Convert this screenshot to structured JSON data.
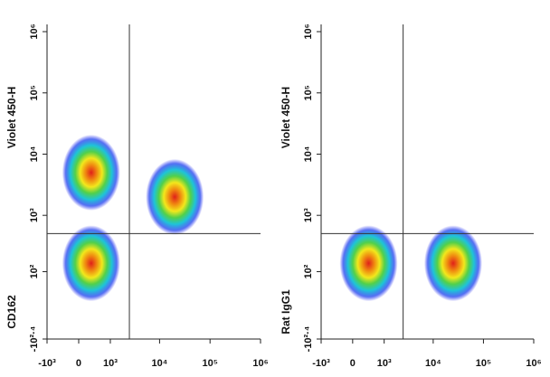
{
  "chart_data": [
    {
      "type": "density",
      "y_label": [
        "CD162",
        "Violet 450-H"
      ],
      "x": [
        300,
        20000,
        300
      ],
      "y": [
        150,
        2000,
        5000
      ],
      "quadrant_gate": {
        "x": 2500,
        "y": 500
      },
      "xlim": [
        -1000,
        1000000
      ],
      "xticks": [
        {
          "value": -1000,
          "label": "-10³"
        },
        0,
        {
          "value": 1000,
          "label": "10³"
        },
        {
          "value": 10000,
          "label": "10⁴"
        },
        {
          "value": 100000,
          "label": "10⁵"
        },
        {
          "value": 1000000,
          "label": "10⁶"
        }
      ],
      "ylim": [
        -251,
        1000000
      ],
      "yticks": [
        {
          "value": -251,
          "label": "-10²·⁴"
        },
        {
          "value": 100,
          "label": "10²"
        },
        {
          "value": 1000,
          "label": "10³"
        },
        {
          "value": 10000,
          "label": "10⁴"
        },
        {
          "value": 100000,
          "label": "10⁵"
        },
        {
          "value": 1000000,
          "label": "10⁶"
        }
      ]
    },
    {
      "type": "density",
      "y_label": [
        "Rat IgG1",
        "Violet 450-H"
      ],
      "x": [
        400,
        25000
      ],
      "y": [
        150,
        150
      ],
      "quadrant_gate": {
        "x": 2500,
        "y": 500
      },
      "xlim": [
        -1000,
        1000000
      ],
      "xticks": [
        {
          "value": -1000,
          "label": "-10³"
        },
        0,
        {
          "value": 1000,
          "label": "10³"
        },
        {
          "value": 10000,
          "label": "10⁴"
        },
        {
          "value": 100000,
          "label": "10⁵"
        },
        {
          "value": 1000000,
          "label": "10⁶"
        }
      ],
      "ylim": [
        -251,
        1000000
      ],
      "yticks": [
        {
          "value": -251,
          "label": "-10²·⁴"
        },
        {
          "value": 100,
          "label": "10²"
        },
        {
          "value": 1000,
          "label": "10³"
        },
        {
          "value": 10000,
          "label": "10⁴"
        },
        {
          "value": 100000,
          "label": "10⁵"
        },
        {
          "value": 1000000,
          "label": "10⁶"
        }
      ]
    }
  ]
}
